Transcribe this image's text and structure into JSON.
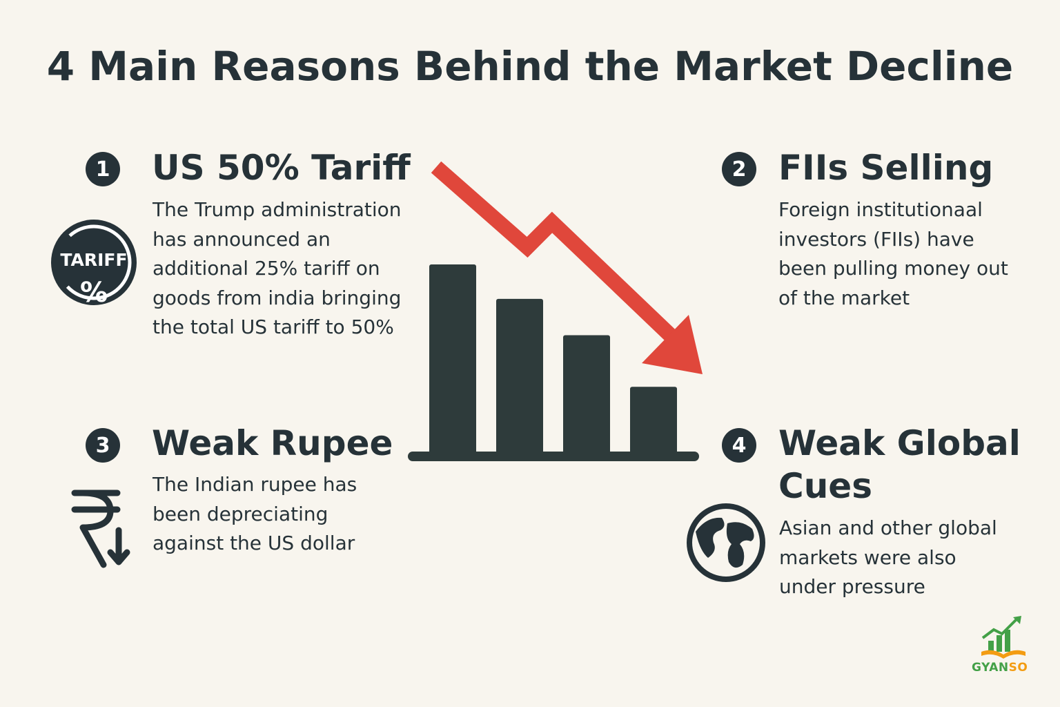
{
  "title": "4 Main Reasons Behind the Market Decline",
  "reasons": [
    {
      "number": "1",
      "heading": "US 50% Tariff",
      "body": "The Trump administration has announced an additional 25% tariff on goods from india bringing the total US tariff to 50%",
      "icon": "tariff-percent-icon",
      "icon_text_top": "TARIFF",
      "icon_text_bottom": "%"
    },
    {
      "number": "2",
      "heading": "FIIs Selling",
      "body": "Foreign institutionaal investors (FIIs) have been pulling money out of the market"
    },
    {
      "number": "3",
      "heading": "Weak Rupee",
      "body": "The Indian rupee has been depreciating against the US dollar",
      "icon": "rupee-down-icon",
      "icon_text": "₹"
    },
    {
      "number": "4",
      "heading": "Weak Global Cues",
      "body": "Asian and other global markets were also under pressure",
      "icon": "globe-icon"
    }
  ],
  "illustration": {
    "bars": [
      1.0,
      0.82,
      0.63,
      0.36
    ],
    "bar_color": "#2e3b3b",
    "arrow_color": "#e0473b"
  },
  "logo": {
    "text_green": "GYAN",
    "text_orange": "SO",
    "icon": "book-growth-chart-icon"
  },
  "colors": {
    "background": "#f8f5ee",
    "text": "#263238",
    "accent_red": "#e0473b",
    "logo_green": "#43a047",
    "logo_orange": "#f39c12"
  }
}
